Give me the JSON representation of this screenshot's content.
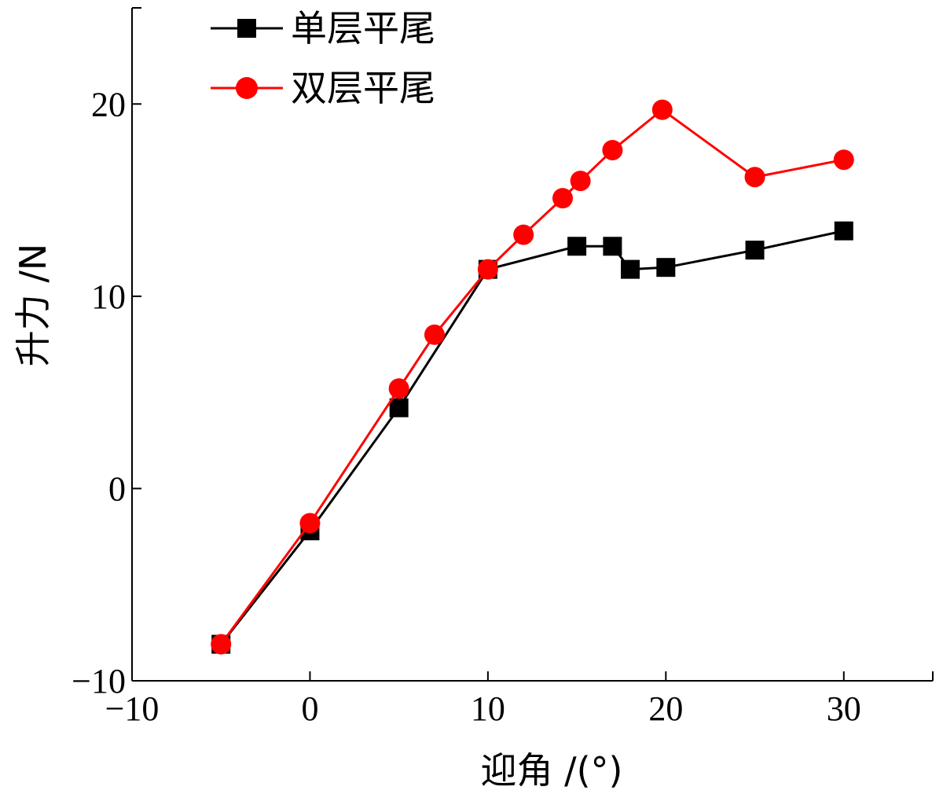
{
  "chart_data": {
    "type": "line",
    "title": "",
    "xlabel": "迎角 /(°)",
    "ylabel": "升力 /N",
    "xlim": [
      -10,
      35
    ],
    "ylim": [
      -10,
      25
    ],
    "x_ticks": [
      -10,
      0,
      10,
      20,
      30
    ],
    "y_ticks": [
      -10,
      0,
      10,
      20
    ],
    "x_tick_labels": [
      "−10",
      "0",
      "10",
      "20",
      "30"
    ],
    "y_tick_labels": [
      "−10",
      "0",
      "10",
      "20"
    ],
    "grid": false,
    "legend_position": "top-left",
    "series": [
      {
        "name": "单层平尾",
        "color": "#000000",
        "marker": "square",
        "x": [
          -5,
          0,
          5,
          10,
          15,
          17,
          18,
          20,
          25,
          30
        ],
        "y": [
          -8.1,
          -2.2,
          4.2,
          11.4,
          12.6,
          12.6,
          11.4,
          11.5,
          12.4,
          13.4
        ]
      },
      {
        "name": "双层平尾",
        "color": "#ff0000",
        "marker": "circle",
        "x": [
          -5,
          0,
          5,
          7,
          10,
          12,
          14.2,
          15.2,
          17,
          19.8,
          25,
          30
        ],
        "y": [
          -8.1,
          -1.8,
          5.2,
          8.0,
          11.4,
          13.2,
          15.1,
          16.0,
          17.6,
          19.7,
          16.2,
          17.1
        ]
      }
    ]
  }
}
